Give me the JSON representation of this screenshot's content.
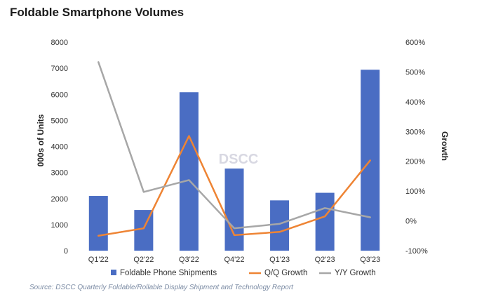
{
  "title": "Foldable Smartphone Volumes",
  "source": "Source: DSCC Quarterly Foldable/Rollable Display Shipment and Technology Report",
  "watermark": "DSCC",
  "colors": {
    "bars": "#4a6dc3",
    "qq": "#ee8434",
    "yy": "#a7a7a7"
  },
  "chart_data": {
    "type": "bar",
    "categories": [
      "Q1'22",
      "Q2'22",
      "Q3'22",
      "Q4'22",
      "Q1'23",
      "Q2'23",
      "Q3'23"
    ],
    "ylabel": "000s of Units",
    "y2label": "Growth",
    "ylim": [
      0,
      8000
    ],
    "y2lim": [
      -100,
      600
    ],
    "yticks": [
      "0",
      "1000",
      "2000",
      "3000",
      "4000",
      "5000",
      "6000",
      "7000",
      "8000"
    ],
    "y2ticks": [
      "-100%",
      "0%",
      "100%",
      "200%",
      "300%",
      "400%",
      "500%",
      "600%"
    ],
    "series": [
      {
        "name": "Foldable Phone Shipments",
        "type": "bar",
        "axis": "left",
        "values": [
          2100,
          1560,
          6080,
          3150,
          1930,
          2220,
          6940
        ]
      },
      {
        "name": "Q/Q Growth",
        "type": "line",
        "axis": "right",
        "values": [
          -50,
          -25,
          285,
          -48,
          -37,
          15,
          203
        ]
      },
      {
        "name": "Y/Y Growth",
        "type": "line",
        "axis": "right",
        "values": [
          533,
          97,
          137,
          -25,
          -10,
          43,
          12
        ]
      }
    ]
  }
}
